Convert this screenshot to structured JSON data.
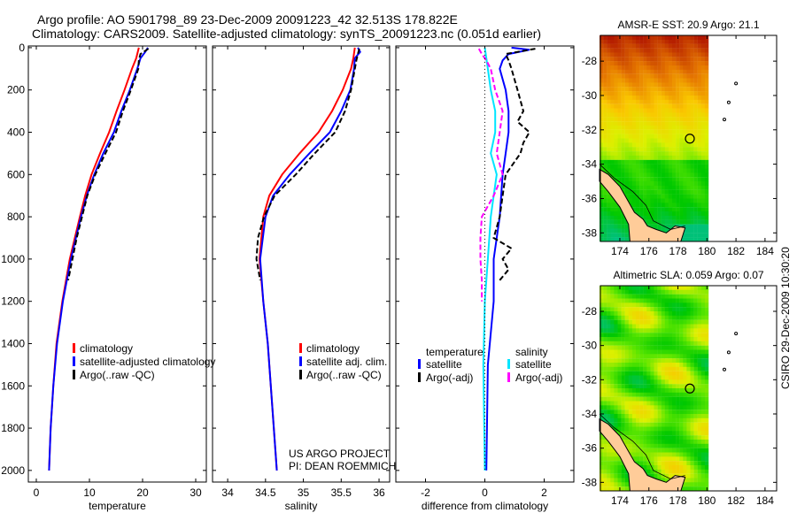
{
  "header": {
    "line1": "Argo profile: AO 5901798_89 23-Dec-2009 20091223_42 32.513S 178.822E",
    "line2": "Climatology: CARS2009. Satellite-adjusted climatology: synTS_20091223.nc (0.051d earlier)"
  },
  "credits": {
    "project": "US ARGO PROJECT",
    "pi": "PI: DEAN ROEMMICH"
  },
  "timestamp": "CSIRO 29-Dec-2009 10:30:20",
  "colors": {
    "climatology": "#ff0000",
    "satellite": "#0000ff",
    "argo": "#000000",
    "sal_satellite": "#00e5ff",
    "sal_argo": "#ff00ff"
  },
  "chart_data": [
    {
      "type": "line",
      "xlabel": "temperature",
      "ylabel": "depth",
      "xlim": [
        -1.5,
        32
      ],
      "ylim": [
        -8,
        2055
      ],
      "xticks": [
        0,
        10,
        20,
        30
      ],
      "yticks": [
        0,
        200,
        400,
        600,
        800,
        1000,
        1200,
        1400,
        1600,
        1800,
        2000
      ],
      "legend": [
        "climatology",
        "satellite-adjusted climatology",
        "Argo(..raw -QC)"
      ],
      "series": [
        {
          "name": "climatology",
          "color": "#ff0000",
          "style": "solid",
          "depth": [
            0,
            50,
            100,
            200,
            300,
            400,
            500,
            600,
            700,
            800,
            1000,
            1200,
            1400,
            1600,
            1800,
            2000
          ],
          "values": [
            19.3,
            18.8,
            18,
            16.6,
            15.1,
            13.7,
            12,
            10.4,
            9.2,
            8.2,
            6.3,
            4.9,
            3.8,
            3.2,
            2.7,
            2.4
          ]
        },
        {
          "name": "satellite-adjusted climatology",
          "color": "#0000ff",
          "style": "solid",
          "depth": [
            0,
            20,
            50,
            100,
            200,
            300,
            400,
            500,
            600,
            700,
            800,
            1000,
            1200,
            1400,
            1600,
            1800,
            2000
          ],
          "values": [
            21,
            20.5,
            19.6,
            19,
            17.6,
            16,
            14.6,
            12.6,
            10.9,
            9.5,
            8.4,
            6.5,
            5,
            3.9,
            3.2,
            2.7,
            2.4
          ]
        },
        {
          "name": "Argo(..raw -QC)",
          "color": "#000000",
          "style": "dash",
          "depth": [
            5,
            30,
            60,
            100,
            200,
            300,
            400,
            500,
            600,
            700,
            800,
            900,
            1000,
            1100
          ],
          "values": [
            21.1,
            19.6,
            19.3,
            19.2,
            17.8,
            16.3,
            15,
            13,
            11.1,
            9.6,
            8.6,
            7.6,
            6.8,
            6.0
          ]
        }
      ]
    },
    {
      "type": "line",
      "xlabel": "salinity",
      "ylabel": "depth",
      "xlim": [
        33.8,
        36.14
      ],
      "ylim": [
        -8,
        2055
      ],
      "xticks": [
        34,
        34.5,
        35,
        35.5,
        36
      ],
      "yticks": [
        0,
        200,
        400,
        600,
        800,
        1000,
        1200,
        1400,
        1600,
        1800,
        2000
      ],
      "legend": [
        "climatology",
        "satellite adj. clim.",
        "Argo(..raw -QC)"
      ],
      "series": [
        {
          "name": "climatology",
          "color": "#ff0000",
          "style": "solid",
          "depth": [
            0,
            50,
            100,
            200,
            300,
            400,
            500,
            600,
            700,
            800,
            1000,
            1200,
            1400,
            1600,
            1800,
            2000
          ],
          "values": [
            35.68,
            35.66,
            35.63,
            35.52,
            35.38,
            35.2,
            34.95,
            34.72,
            34.55,
            34.47,
            34.42,
            34.47,
            34.53,
            34.57,
            34.61,
            34.65
          ]
        },
        {
          "name": "satellite adj. clim.",
          "color": "#0000ff",
          "style": "solid",
          "depth": [
            0,
            20,
            50,
            100,
            200,
            300,
            400,
            500,
            600,
            700,
            800,
            1000,
            1200,
            1400,
            1600,
            1800,
            2000
          ],
          "values": [
            35.72,
            35.75,
            35.68,
            35.67,
            35.62,
            35.5,
            35.35,
            35.08,
            34.82,
            34.6,
            34.5,
            34.43,
            34.47,
            34.53,
            34.57,
            34.61,
            34.65
          ]
        },
        {
          "name": "Argo(..raw -QC)",
          "color": "#000000",
          "style": "dash",
          "depth": [
            5,
            30,
            60,
            100,
            200,
            300,
            400,
            500,
            600,
            700,
            800,
            900,
            1000,
            1100
          ],
          "values": [
            35.74,
            35.72,
            35.7,
            35.68,
            35.63,
            35.55,
            35.42,
            35.15,
            34.9,
            34.62,
            34.48,
            34.4,
            34.38,
            34.43
          ]
        }
      ]
    },
    {
      "type": "line",
      "xlabel": "difference from climatology",
      "ylabel": "depth",
      "xlim": [
        -3,
        3
      ],
      "ylim": [
        -8,
        2055
      ],
      "xticks": [
        -2,
        0,
        2
      ],
      "yticks": [
        0,
        200,
        400,
        600,
        800,
        1000,
        1200,
        1400,
        1600,
        1800,
        2000
      ],
      "legend_titles": [
        "temperature",
        "salinity"
      ],
      "legend": [
        "satellite",
        "Argo(-adj)",
        "satellite",
        "Argo(-adj)"
      ],
      "series": [
        {
          "name": "temperature satellite",
          "color": "#0000ff",
          "style": "solid",
          "depth": [
            0,
            10,
            30,
            60,
            100,
            200,
            300,
            400,
            500,
            600,
            800,
            1000,
            1200,
            1500,
            2000
          ],
          "values": [
            0.9,
            1.5,
            0.8,
            0.6,
            0.5,
            0.7,
            0.8,
            0.8,
            0.7,
            0.6,
            0.5,
            0.3,
            0.3,
            0.1,
            0.05
          ]
        },
        {
          "name": "temperature Argo(-adj)",
          "color": "#000000",
          "style": "dash",
          "depth": [
            5,
            30,
            60,
            100,
            200,
            300,
            350,
            400,
            450,
            500,
            600,
            700,
            800,
            900,
            950,
            1000,
            1050,
            1100
          ],
          "values": [
            1.7,
            0.7,
            0.8,
            0.9,
            1.1,
            1.3,
            1.1,
            1.5,
            1.3,
            1.2,
            0.7,
            0.6,
            0.5,
            0.3,
            0.9,
            0.6,
            0.8,
            0.5
          ]
        },
        {
          "name": "salinity satellite",
          "color": "#00e5ff",
          "style": "solid",
          "depth": [
            0,
            50,
            100,
            200,
            300,
            400,
            500,
            600,
            700,
            800,
            1000,
            1200,
            1500,
            2000
          ],
          "values": [
            0.0,
            0.05,
            0.1,
            0.2,
            0.35,
            0.35,
            0.2,
            0.4,
            0.3,
            0.2,
            0.1,
            0.0,
            -0.05,
            0.0
          ]
        },
        {
          "name": "salinity Argo(-adj)",
          "color": "#ff00ff",
          "style": "dash",
          "depth": [
            5,
            30,
            60,
            100,
            200,
            300,
            400,
            500,
            600,
            700,
            800,
            900,
            1000,
            1100,
            1200
          ],
          "values": [
            -0.2,
            -0.1,
            0.05,
            0.2,
            0.35,
            0.6,
            0.5,
            0.4,
            0.6,
            0.3,
            -0.1,
            -0.15,
            -0.15,
            -0.1,
            -0.1
          ]
        },
        {
          "name": "zero",
          "color": "#000000",
          "style": "dot",
          "depth": [
            0,
            2000
          ],
          "values": [
            0,
            0
          ]
        }
      ]
    },
    {
      "type": "heatmap",
      "title": "AMSR-E SST: 20.9 Argo: 21.1",
      "xlim": [
        172.66,
        184.8
      ],
      "ylim": [
        -38.5,
        -26.5
      ],
      "xticks": [
        174,
        176,
        178,
        180,
        182,
        184
      ],
      "yticks": [
        -28,
        -30,
        -32,
        -34,
        -36,
        -38
      ],
      "profile_location": [
        178.822,
        -32.513
      ]
    },
    {
      "type": "heatmap",
      "title": "Altimetric SLA: 0.059 Argo: 0.07",
      "xlim": [
        172.66,
        184.8
      ],
      "ylim": [
        -38.5,
        -26.5
      ],
      "xticks": [
        174,
        176,
        178,
        180,
        182,
        184
      ],
      "yticks": [
        -28,
        -30,
        -32,
        -34,
        -36,
        -38
      ],
      "profile_location": [
        178.822,
        -32.513
      ]
    }
  ]
}
